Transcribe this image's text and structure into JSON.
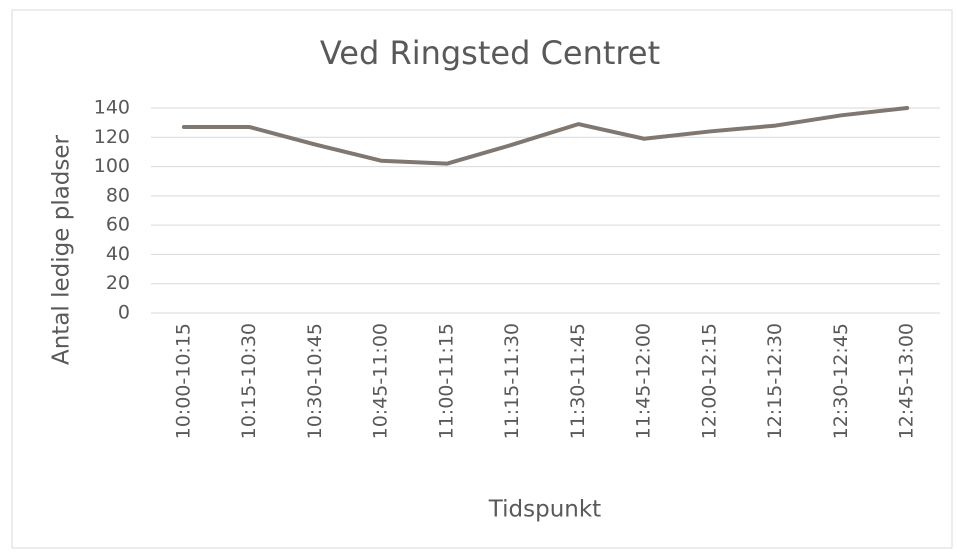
{
  "chart_data": {
    "type": "line",
    "title": "Ved Ringsted Centret",
    "x_label": "Tidspunkt",
    "y_label": "Antal ledige pladser",
    "categories": [
      "10:00-10:15",
      "10:15-10:30",
      "10:30-10:45",
      "10:45-11:00",
      "11:00-11:15",
      "11:15-11:30",
      "11:30-11:45",
      "11:45-12:00",
      "12:00-12:15",
      "12:15-12:30",
      "12:30-12:45",
      "12:45-13:00"
    ],
    "values": [
      127,
      127,
      115,
      104,
      102,
      115,
      129,
      119,
      124,
      128,
      135,
      140
    ],
    "color": "#7f7770",
    "ylim": [
      0,
      140
    ],
    "yticks": [
      0,
      20,
      40,
      60,
      80,
      100,
      120,
      140
    ],
    "grid": true
  }
}
